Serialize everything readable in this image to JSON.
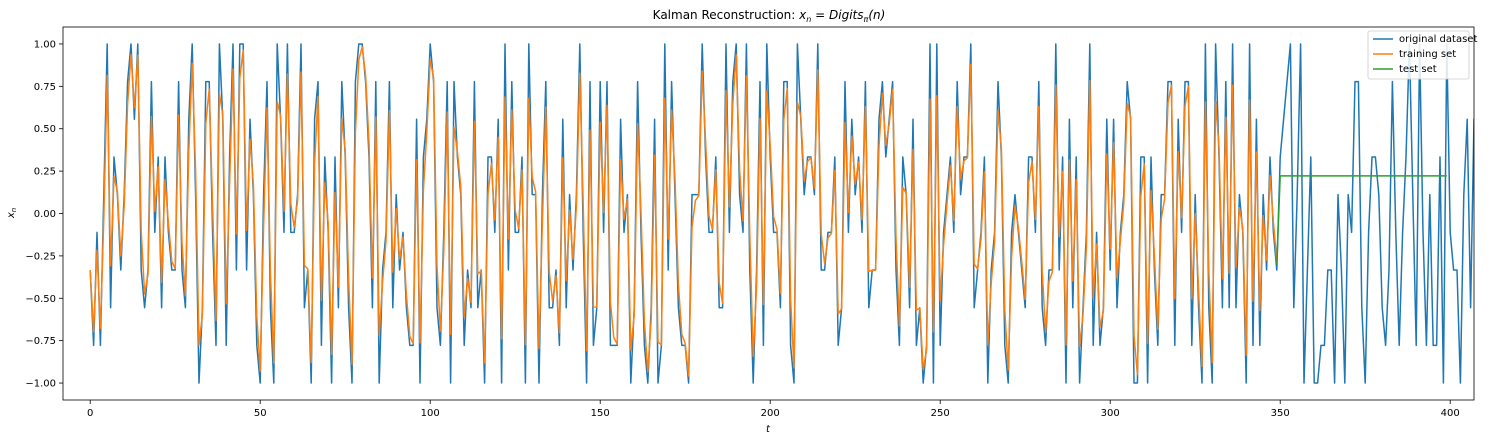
{
  "chart_data": {
    "type": "line",
    "title_prefix": "Kalman Reconstruction: ",
    "title_math_lhs": "x",
    "title_math_lhs_sub": "n",
    "title_math_rhs": "Digits",
    "title_math_rhs_sub": "π",
    "title_math_arg": "(n)",
    "xlabel": "t",
    "ylabel": "x",
    "ylabel_sub": "n",
    "xlim": [
      -8,
      407
    ],
    "ylim": [
      -1.1,
      1.1
    ],
    "xticks": [
      0,
      50,
      100,
      150,
      200,
      250,
      300,
      350,
      400
    ],
    "xtick_labels": [
      "0",
      "50",
      "100",
      "150",
      "200",
      "250",
      "300",
      "350",
      "400"
    ],
    "yticks": [
      -1.0,
      -0.75,
      -0.5,
      -0.25,
      0.0,
      0.25,
      0.5,
      0.75,
      1.0
    ],
    "ytick_labels": [
      "−1.00",
      "−0.75",
      "−0.50",
      "−0.25",
      "0.00",
      "0.25",
      "0.50",
      "0.75",
      "1.00"
    ],
    "grid": false,
    "legend_position": "top-right",
    "digit_scale": "x_n = (2·d − 9) / 9 where d is the n-th digit of π",
    "series": [
      {
        "name": "original dataset",
        "color": "#1f77b4",
        "digits": "3141592653589793238462643383279502884197169399375105820974944592307816406286208998628034825342117067982148086513282306647093844609550582231725359408128481117450284102701938521105559644622948954930381964428810975665933446128475648233786783165271201909145648566923460348610454326648213393607260249141273724587006606315588174881520920962829254091715364367892590360011330530548820466521384146951941511609433057270365759591953092186117381932611793105118548074462379962749567351885752724891227938183011949129833673362440656643086021394946395224737190702179860943702770539217176293176752384674818467669405132"
      },
      {
        "name": "training set",
        "color": "#ff7f0e",
        "n_points": 350,
        "blend": 0.82
      },
      {
        "name": "test set",
        "color": "#2ca02c",
        "x_start": 349,
        "x_end": 399,
        "start_value": -0.3,
        "plateau_x": 350,
        "plateau_value": 0.222
      }
    ]
  }
}
